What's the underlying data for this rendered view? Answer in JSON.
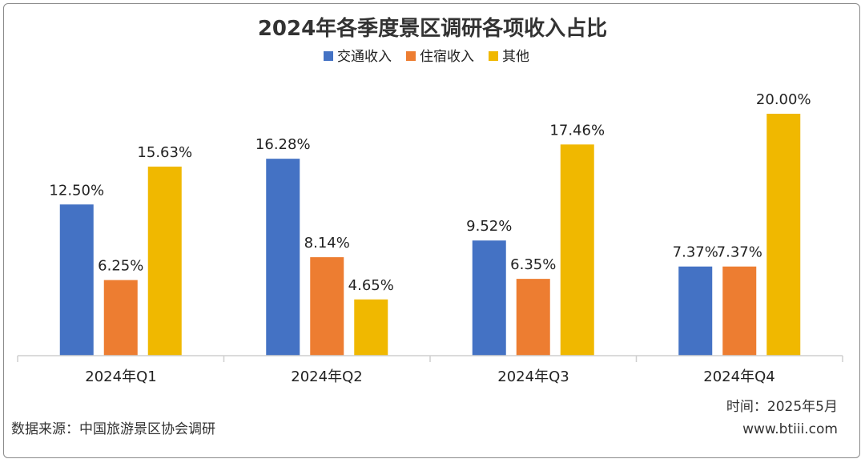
{
  "chart_data": {
    "type": "bar",
    "title": "2024年各季度景区调研各项收入占比",
    "categories": [
      "2024年Q1",
      "2024年Q2",
      "2024年Q3",
      "2024年Q4"
    ],
    "series": [
      {
        "name": "交通收入",
        "color": "#4472C4",
        "values": [
          12.5,
          16.28,
          9.52,
          7.37
        ],
        "labels": [
          "12.50%",
          "16.28%",
          "9.52%",
          "7.37%"
        ]
      },
      {
        "name": "住宿收入",
        "color": "#ED7D31",
        "values": [
          6.25,
          8.14,
          6.35,
          7.37
        ],
        "labels": [
          "6.25%",
          "8.14%",
          "6.35%",
          "7.37%"
        ]
      },
      {
        "name": "其他",
        "color": "#F0B800",
        "values": [
          15.63,
          4.65,
          17.46,
          20.0
        ],
        "labels": [
          "15.63%",
          "4.65%",
          "17.46%",
          "20.00%"
        ]
      }
    ],
    "unit": "%",
    "legend_position": "top-center",
    "grid": false
  },
  "footer": {
    "source": "数据来源：中国旅游景区协会调研",
    "date": "时间：2025年5月",
    "site": "www.btiii.com"
  }
}
